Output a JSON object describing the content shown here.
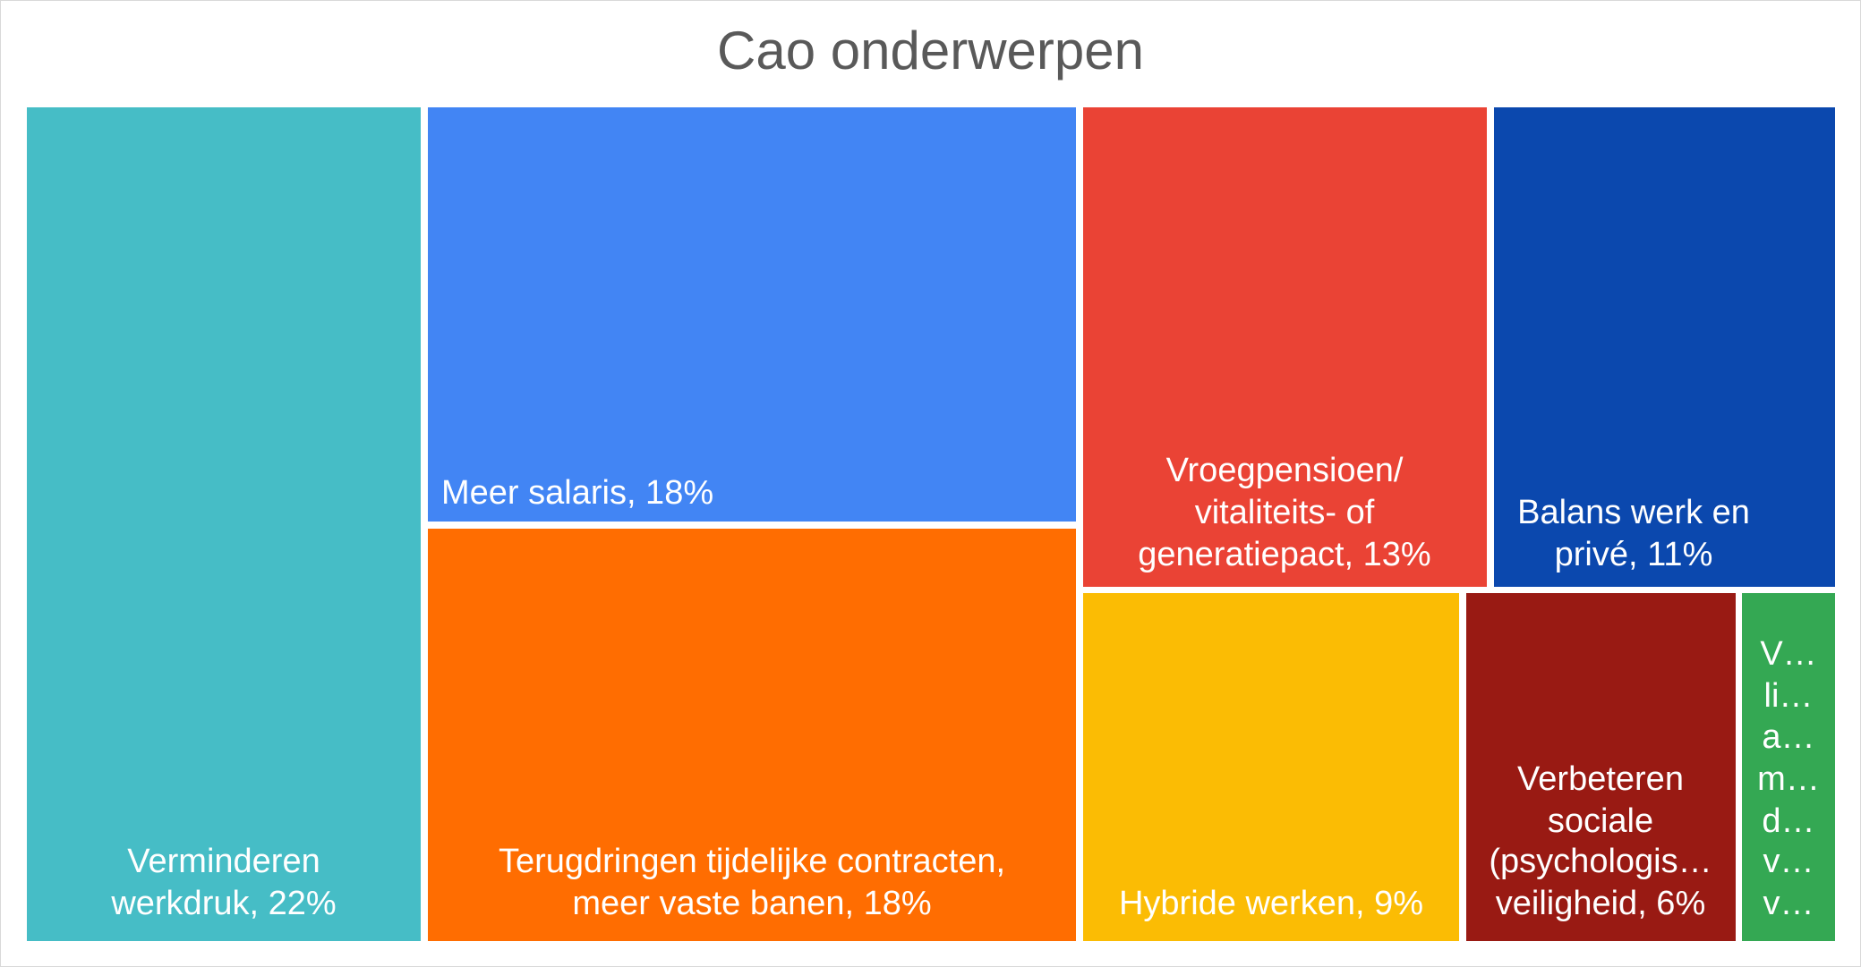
{
  "chart_data": {
    "type": "treemap",
    "title": "Cao onderwerpen",
    "items": [
      {
        "label": "Verminderen werkdruk",
        "value": 22,
        "display": "Verminderen\nwerkdruk, 22%",
        "color": "#46BDC6"
      },
      {
        "label": "Meer salaris",
        "value": 18,
        "display": "Meer salaris, 18%",
        "color": "#4285F4"
      },
      {
        "label": "Terugdringen tijdelijke contracten, meer vaste banen",
        "value": 18,
        "display": "Terugdringen tijdelijke contracten,\nmeer vaste banen, 18%",
        "color": "#FF6D01"
      },
      {
        "label": "Vroegpensioen/ vitaliteits- of generatiepact",
        "value": 13,
        "display": "Vroegpensioen/\nvitaliteits- of\ngeneratiepact, 13%",
        "color": "#EA4335"
      },
      {
        "label": "Balans werk en privé",
        "value": 11,
        "display": "Balans werk en\nprivé, 11%",
        "color": "#0B48AE"
      },
      {
        "label": "Hybride werken",
        "value": 9,
        "display": "Hybride werken, 9%",
        "color": "#FBBC04"
      },
      {
        "label": "Verbeteren sociale (psychologische) veiligheid",
        "value": 6,
        "display": "Verbeteren\nsociale\n(psychologis…\nveiligheid, 6%",
        "color": "#991A13"
      },
      {
        "label": "",
        "value": null,
        "display": "V…\nli…\na…\nm…\nd…\nv…\nv…",
        "color": "#34A853"
      }
    ]
  }
}
